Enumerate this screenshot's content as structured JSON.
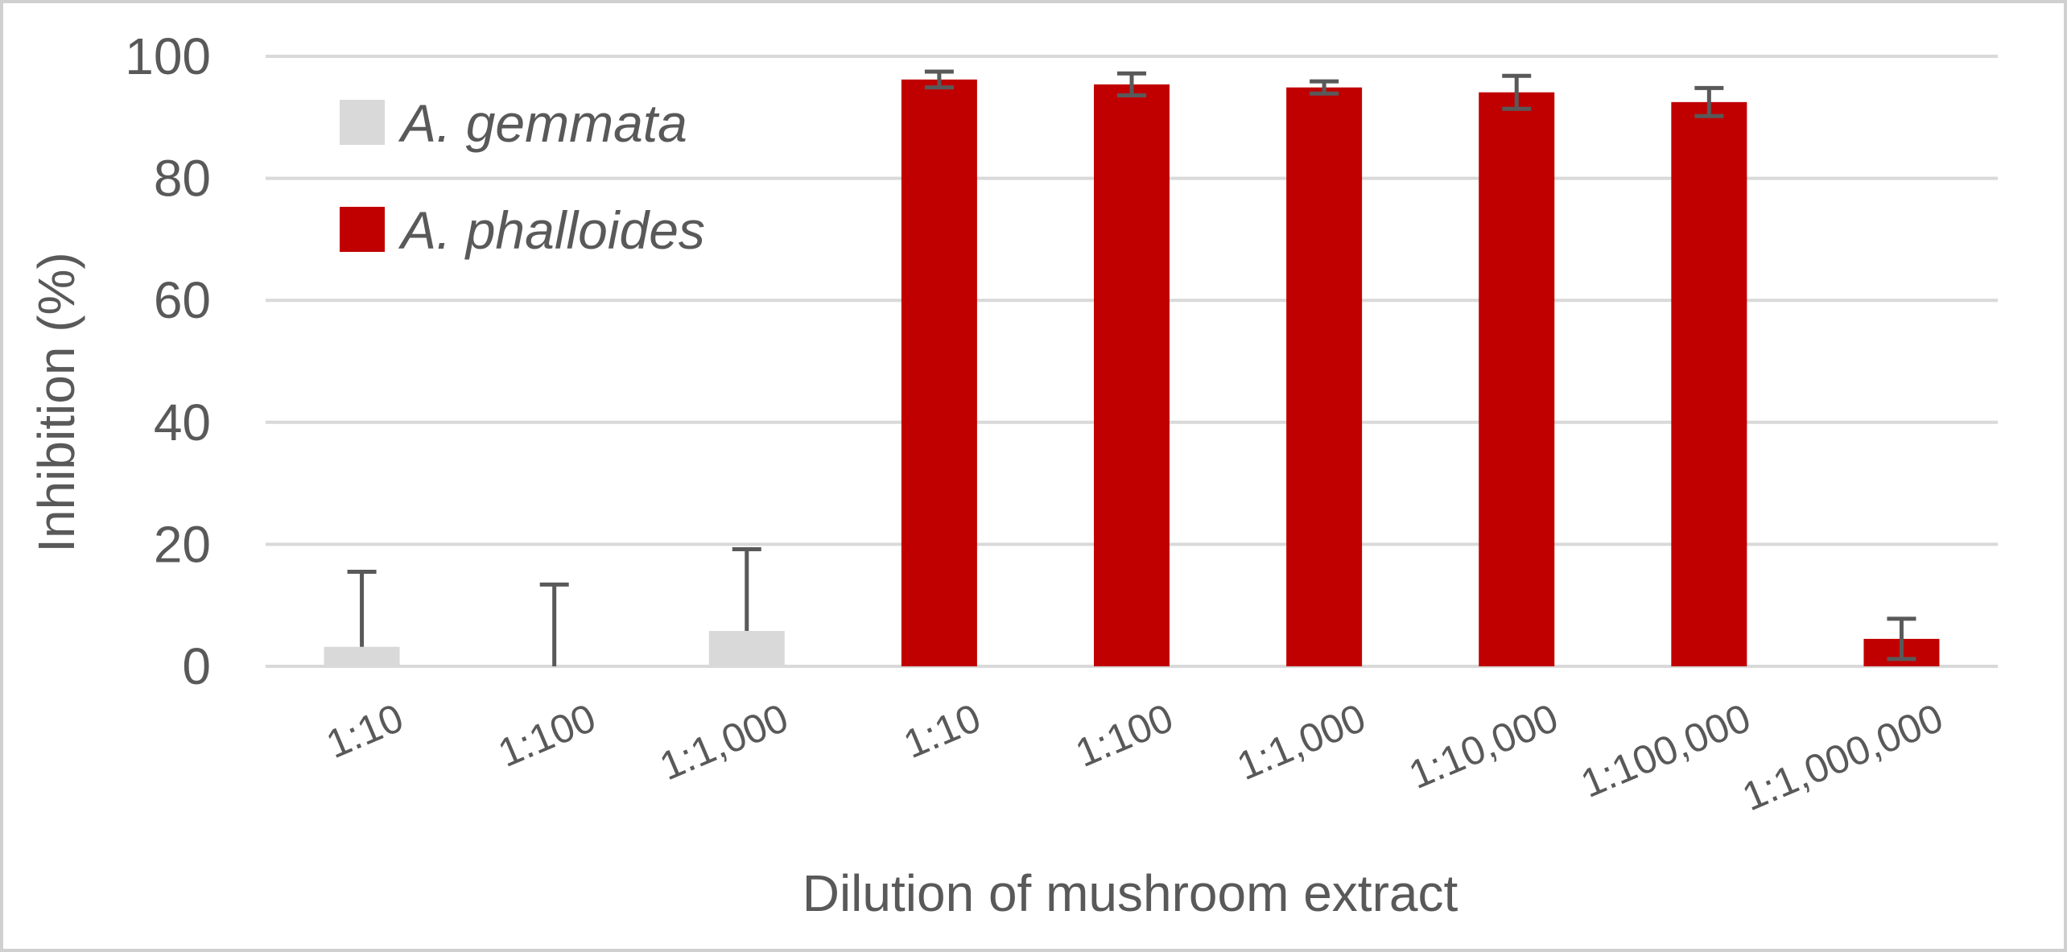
{
  "chart_data": {
    "type": "bar",
    "categories": [
      "1:10",
      "1:100",
      "1:1,000",
      "1:10",
      "1:100",
      "1:1,000",
      "1:10,000",
      "1:100,000",
      "1:1,000,000"
    ],
    "series": [
      {
        "name": "A. gemmata",
        "color": "#d9d9d9",
        "values": [
          3.2,
          0,
          5.8,
          null,
          null,
          null,
          null,
          null,
          null
        ],
        "err_plus": [
          12.3,
          13.4,
          13.4,
          null,
          null,
          null,
          null,
          null,
          null
        ],
        "err_minus": [
          0,
          0,
          0,
          null,
          null,
          null,
          null,
          null,
          null
        ]
      },
      {
        "name": "A. phalloides",
        "color": "#c00000",
        "values": [
          null,
          null,
          null,
          96.2,
          95.4,
          94.9,
          94.1,
          92.5,
          4.5
        ],
        "err_plus": [
          null,
          null,
          null,
          1.3,
          1.8,
          1.0,
          2.7,
          2.3,
          3.3
        ],
        "err_minus": [
          null,
          null,
          null,
          1.3,
          1.8,
          1.0,
          2.7,
          2.3,
          3.3
        ]
      }
    ],
    "title": "",
    "xlabel": "Dilution of mushroom extract",
    "ylabel": "Inhibition (%)",
    "ylim": [
      0,
      100
    ],
    "yticks": [
      0,
      20,
      40,
      60,
      80,
      100
    ],
    "grid": true,
    "legend": "top-left",
    "error_bar_color": "#595959",
    "gridline_color": "#d9d9d9"
  }
}
